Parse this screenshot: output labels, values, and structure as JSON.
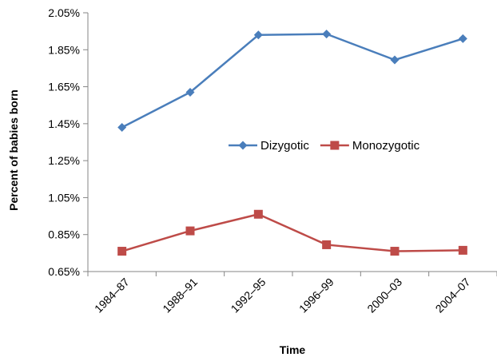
{
  "chart_data": {
    "type": "line",
    "title": "",
    "xlabel": "Time",
    "ylabel": "Percent of babies born",
    "categories": [
      "1984–87",
      "1988–91",
      "1992–95",
      "1996–99",
      "2000–03",
      "2004–07"
    ],
    "y_ticks": [
      "0.65%",
      "0.85%",
      "1.05%",
      "1.25%",
      "1.45%",
      "1.65%",
      "1.85%",
      "2.05%"
    ],
    "ylim": [
      0.65,
      2.05
    ],
    "grid": false,
    "legend_position": "center-right",
    "series": [
      {
        "name": "Dizygotic",
        "color": "#4a7ebb",
        "marker": "diamond",
        "values": [
          1.43,
          1.62,
          1.93,
          1.935,
          1.795,
          1.91
        ]
      },
      {
        "name": "Monozygotic",
        "color": "#be4b48",
        "marker": "square",
        "values": [
          0.76,
          0.87,
          0.96,
          0.795,
          0.76,
          0.765
        ]
      }
    ]
  }
}
